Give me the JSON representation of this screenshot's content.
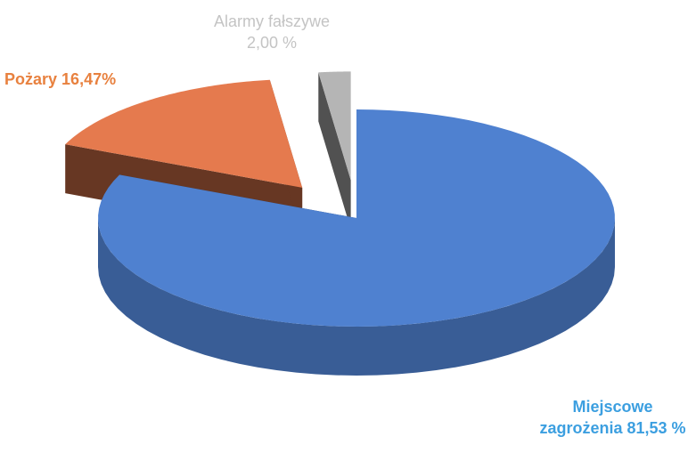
{
  "chart_data": {
    "type": "pie",
    "categories": [
      "Miejscowe zagrożenia",
      "Pożary",
      "Alarmy fałszywe"
    ],
    "values": [
      81.53,
      16.47,
      2.0
    ],
    "value_labels": [
      "81,53 %",
      "16,47%",
      "2,00 %"
    ],
    "colors": [
      "#4f81d0",
      "#e57a4e",
      "#b5b5b5"
    ],
    "label_colors": [
      "#3c9fe0",
      "#e8813f",
      "#c4c4c4"
    ]
  }
}
